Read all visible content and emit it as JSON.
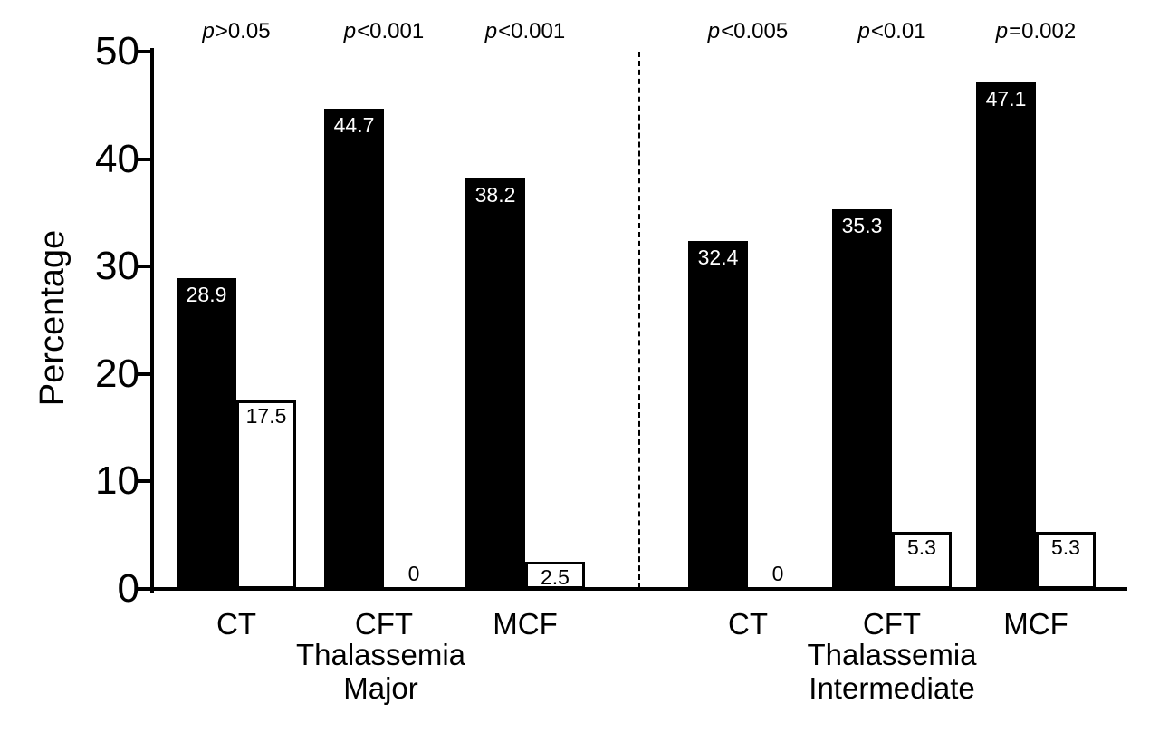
{
  "chart_data": {
    "type": "bar",
    "title": "",
    "ylabel": "Percentage",
    "xlabel": "",
    "ylim": [
      0,
      50
    ],
    "yticks": [
      0,
      10,
      20,
      30,
      40,
      50
    ],
    "grid": false,
    "legend": "none",
    "colors": {
      "filled_series": "#000000",
      "open_series": "#ffffff",
      "axis": "#000000"
    },
    "groups": [
      {
        "label_lines": [
          "Thalassemia",
          "Major"
        ],
        "categories": [
          "CT",
          "CFT",
          "MCF"
        ],
        "series": [
          {
            "name": "filled-black",
            "values": [
              28.9,
              44.7,
              38.2
            ]
          },
          {
            "name": "open-white",
            "values": [
              17.5,
              0,
              2.5
            ]
          }
        ],
        "p_values": [
          "p>0.05",
          "p<0.001",
          "p<0.001"
        ]
      },
      {
        "label_lines": [
          "Thalassemia",
          "Intermediate"
        ],
        "categories": [
          "CT",
          "CFT",
          "MCF"
        ],
        "series": [
          {
            "name": "filled-black",
            "values": [
              32.4,
              35.3,
              47.1
            ]
          },
          {
            "name": "open-white",
            "values": [
              0,
              5.3,
              5.3
            ]
          }
        ],
        "p_values": [
          "p<0.005",
          "p<0.01",
          "p=0.002"
        ]
      }
    ]
  }
}
